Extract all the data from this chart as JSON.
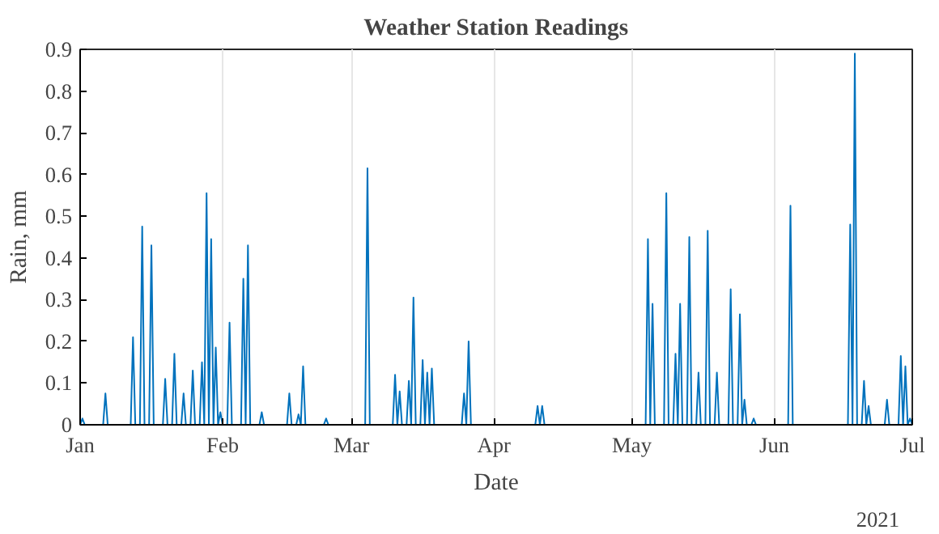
{
  "chart_data": {
    "type": "line",
    "title": "Weather Station Readings",
    "xlabel": "Date",
    "ylabel": "Rain, mm",
    "annotations": [
      "2021"
    ],
    "x": [
      "2021-01-01",
      "2021-01-01T12:00",
      "2021-01-02",
      "2021-01-06",
      "2021-01-06T12:00",
      "2021-01-07",
      "2021-01-12",
      "2021-01-12T12:00",
      "2021-01-13",
      "2021-01-14",
      "2021-01-14T12:00",
      "2021-01-15",
      "2021-01-16",
      "2021-01-16T12:00",
      "2021-01-17",
      "2021-01-19",
      "2021-01-19T12:00",
      "2021-01-20",
      "2021-01-21",
      "2021-01-21T12:00",
      "2021-01-22",
      "2021-01-23",
      "2021-01-23T12:00",
      "2021-01-24",
      "2021-01-25",
      "2021-01-25T12:00",
      "2021-01-26",
      "2021-01-27",
      "2021-01-27T12:00",
      "2021-01-28",
      "2021-01-28T12:00",
      "2021-01-29",
      "2021-01-29T12:00",
      "2021-01-30",
      "2021-01-30T12:00",
      "2021-01-31",
      "2021-01-31T12:00",
      "2021-02-01",
      "2021-02-02",
      "2021-02-02T12:00",
      "2021-02-03",
      "2021-02-05",
      "2021-02-05T12:00",
      "2021-02-06",
      "2021-02-06T12:00",
      "2021-02-07",
      "2021-02-09",
      "2021-02-09T12:00",
      "2021-02-10",
      "2021-02-15",
      "2021-02-15T12:00",
      "2021-02-16",
      "2021-02-17",
      "2021-02-17T12:00",
      "2021-02-18",
      "2021-02-18T12:00",
      "2021-02-19",
      "2021-02-23",
      "2021-02-23T12:00",
      "2021-02-24",
      "2021-03-04",
      "2021-03-04T12:00",
      "2021-03-05",
      "2021-03-10",
      "2021-03-10T12:00",
      "2021-03-11",
      "2021-03-11T12:00",
      "2021-03-12",
      "2021-03-13",
      "2021-03-13T12:00",
      "2021-03-14",
      "2021-03-14T12:00",
      "2021-03-15",
      "2021-03-16",
      "2021-03-16T12:00",
      "2021-03-17",
      "2021-03-17T12:00",
      "2021-03-18",
      "2021-03-18T12:00",
      "2021-03-19",
      "2021-03-25",
      "2021-03-25T12:00",
      "2021-03-26",
      "2021-03-26T12:00",
      "2021-03-27",
      "2021-04-10",
      "2021-04-10T12:00",
      "2021-04-11",
      "2021-04-11T12:00",
      "2021-04-12",
      "2021-05-04",
      "2021-05-04T12:00",
      "2021-05-05",
      "2021-05-05T12:00",
      "2021-05-06",
      "2021-05-08",
      "2021-05-08T12:00",
      "2021-05-09",
      "2021-05-10",
      "2021-05-10T12:00",
      "2021-05-11",
      "2021-05-11T12:00",
      "2021-05-12",
      "2021-05-13",
      "2021-05-13T12:00",
      "2021-05-14",
      "2021-05-15",
      "2021-05-15T12:00",
      "2021-05-16",
      "2021-05-17",
      "2021-05-17T12:00",
      "2021-05-18",
      "2021-05-19",
      "2021-05-19T12:00",
      "2021-05-20",
      "2021-05-22",
      "2021-05-22T12:00",
      "2021-05-23",
      "2021-05-24",
      "2021-05-24T12:00",
      "2021-05-25",
      "2021-05-25T12:00",
      "2021-05-26",
      "2021-05-27",
      "2021-05-27T12:00",
      "2021-05-28",
      "2021-06-04",
      "2021-06-04T12:00",
      "2021-06-05",
      "2021-06-17",
      "2021-06-17T12:00",
      "2021-06-18",
      "2021-06-18T12:00",
      "2021-06-19",
      "2021-06-20",
      "2021-06-20T12:00",
      "2021-06-21",
      "2021-06-21T12:00",
      "2021-06-22",
      "2021-06-25",
      "2021-06-25T12:00",
      "2021-06-26",
      "2021-06-28",
      "2021-06-28T12:00",
      "2021-06-29",
      "2021-06-29T12:00",
      "2021-06-30",
      "2021-06-30T12:00",
      "2021-07-01"
    ],
    "values": [
      0,
      0.015,
      0,
      0,
      0.075,
      0,
      0,
      0.21,
      0,
      0,
      0.475,
      0,
      0,
      0.43,
      0,
      0,
      0.11,
      0,
      0,
      0.17,
      0,
      0,
      0.075,
      0,
      0,
      0.13,
      0,
      0,
      0.15,
      0,
      0.555,
      0,
      0.445,
      0,
      0.185,
      0,
      0.03,
      0,
      0,
      0.245,
      0,
      0,
      0.35,
      0,
      0.43,
      0,
      0,
      0.03,
      0,
      0,
      0.075,
      0,
      0,
      0.025,
      0,
      0.14,
      0,
      0,
      0.015,
      0,
      0,
      0.615,
      0,
      0,
      0.12,
      0,
      0.08,
      0,
      0,
      0.105,
      0,
      0.305,
      0,
      0,
      0.155,
      0,
      0.125,
      0,
      0.135,
      0,
      0,
      0.075,
      0,
      0.2,
      0,
      0,
      0.045,
      0,
      0.045,
      0,
      0,
      0.445,
      0,
      0.29,
      0,
      0,
      0.555,
      0,
      0,
      0.17,
      0,
      0.29,
      0,
      0,
      0.45,
      0,
      0,
      0.125,
      0,
      0,
      0.465,
      0,
      0,
      0.125,
      0,
      0,
      0.325,
      0,
      0,
      0.265,
      0,
      0.06,
      0,
      0,
      0.015,
      0,
      0,
      0.525,
      0,
      0,
      0.48,
      0,
      0.89,
      0,
      0,
      0.105,
      0,
      0.045,
      0,
      0,
      0.06,
      0,
      0,
      0.165,
      0,
      0.14,
      0,
      0.015,
      0
    ],
    "color": "#0072bd",
    "xlim": [
      "2021-01-01",
      "2021-07-01"
    ],
    "xticks": [
      {
        "value": "2021-01-01",
        "label": "Jan"
      },
      {
        "value": "2021-02-01",
        "label": "Feb"
      },
      {
        "value": "2021-03-01",
        "label": "Mar"
      },
      {
        "value": "2021-04-01",
        "label": "Apr"
      },
      {
        "value": "2021-05-01",
        "label": "May"
      },
      {
        "value": "2021-06-01",
        "label": "Jun"
      },
      {
        "value": "2021-07-01",
        "label": "Jul"
      }
    ],
    "ylim": [
      0,
      0.9
    ],
    "yticks": [
      0,
      0.1,
      0.2,
      0.3,
      0.4,
      0.5,
      0.6,
      0.7,
      0.8,
      0.9
    ],
    "grid": "x"
  }
}
